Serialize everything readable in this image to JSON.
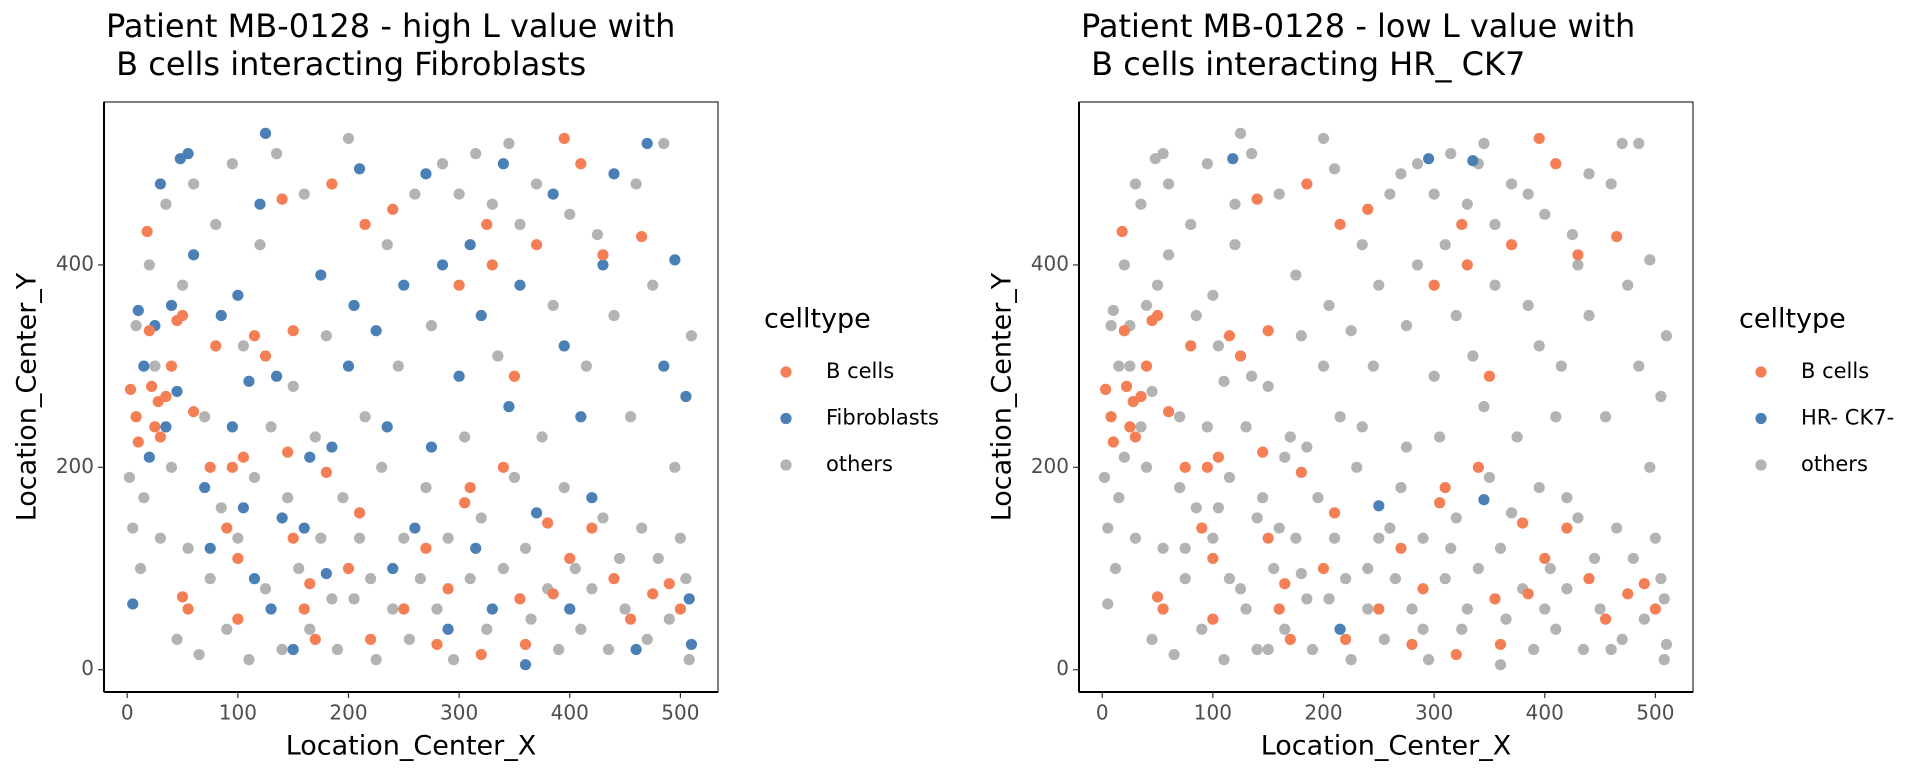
{
  "chart_data": [
    {
      "type": "scatter",
      "title": [
        "Patient MB-0128 - high L value with",
        " B cells interacting Fibroblasts"
      ],
      "x_label": "Location_Center_X",
      "y_label": "Location_Center_Y",
      "legend_title": "celltype",
      "xlim": [
        -21,
        534
      ],
      "ylim": [
        -22,
        561
      ],
      "xticks": [
        0,
        100,
        200,
        300,
        400,
        500
      ],
      "yticks": [
        0,
        200,
        400
      ],
      "series": [
        {
          "name": "B cells",
          "color": "#f47f55",
          "x": [
            3,
            8,
            10,
            18,
            20,
            22,
            25,
            28,
            30,
            35,
            40,
            45,
            50,
            50,
            55,
            60,
            75,
            80,
            90,
            95,
            100,
            100,
            105,
            115,
            125,
            140,
            145,
            150,
            150,
            160,
            165,
            170,
            180,
            185,
            200,
            210,
            215,
            220,
            240,
            250,
            270,
            280,
            290,
            300,
            305,
            310,
            320,
            325,
            330,
            340,
            350,
            355,
            360,
            370,
            380,
            385,
            395,
            400,
            410,
            420,
            430,
            440,
            455,
            465,
            475,
            490,
            500
          ],
          "y": [
            277,
            250,
            225,
            433,
            335,
            280,
            240,
            265,
            230,
            270,
            300,
            345,
            350,
            72,
            60,
            255,
            200,
            320,
            140,
            200,
            50,
            110,
            210,
            330,
            310,
            465,
            215,
            335,
            130,
            60,
            85,
            30,
            195,
            480,
            100,
            155,
            440,
            30,
            455,
            60,
            120,
            25,
            80,
            380,
            165,
            180,
            15,
            440,
            400,
            200,
            290,
            70,
            25,
            420,
            145,
            75,
            525,
            110,
            500,
            140,
            410,
            90,
            50,
            428,
            75,
            85,
            60
          ]
        },
        {
          "name": "Fibroblasts",
          "color": "#4a80b5",
          "x": [
            5,
            10,
            15,
            20,
            25,
            30,
            35,
            40,
            45,
            48,
            55,
            60,
            70,
            75,
            85,
            95,
            100,
            105,
            110,
            115,
            120,
            125,
            130,
            135,
            140,
            150,
            160,
            165,
            175,
            180,
            185,
            200,
            205,
            210,
            225,
            235,
            240,
            250,
            260,
            270,
            275,
            285,
            290,
            300,
            310,
            315,
            320,
            330,
            340,
            345,
            355,
            360,
            370,
            385,
            395,
            400,
            410,
            420,
            430,
            440,
            460,
            470,
            485,
            495,
            505,
            510,
            508
          ],
          "y": [
            65,
            355,
            300,
            210,
            340,
            480,
            240,
            360,
            275,
            505,
            510,
            410,
            180,
            120,
            350,
            240,
            370,
            160,
            285,
            90,
            460,
            530,
            60,
            290,
            150,
            20,
            140,
            210,
            390,
            95,
            220,
            300,
            360,
            495,
            335,
            240,
            100,
            380,
            140,
            490,
            220,
            400,
            40,
            290,
            420,
            120,
            350,
            60,
            500,
            260,
            380,
            5,
            155,
            470,
            320,
            60,
            250,
            170,
            400,
            490,
            20,
            520,
            300,
            405,
            270,
            25,
            70
          ]
        },
        {
          "name": "others",
          "color": "#b3b3b3",
          "x": [
            2,
            5,
            8,
            12,
            15,
            20,
            25,
            30,
            35,
            40,
            45,
            50,
            55,
            60,
            65,
            70,
            75,
            80,
            85,
            90,
            95,
            100,
            105,
            110,
            115,
            120,
            125,
            130,
            135,
            140,
            145,
            150,
            155,
            160,
            165,
            170,
            175,
            180,
            185,
            190,
            195,
            200,
            205,
            210,
            215,
            220,
            225,
            230,
            235,
            240,
            245,
            250,
            255,
            260,
            265,
            270,
            275,
            280,
            285,
            290,
            295,
            300,
            305,
            310,
            315,
            320,
            325,
            330,
            335,
            340,
            345,
            350,
            355,
            360,
            365,
            370,
            375,
            380,
            385,
            390,
            395,
            400,
            405,
            410,
            415,
            420,
            425,
            430,
            435,
            440,
            445,
            450,
            455,
            460,
            465,
            470,
            475,
            480,
            485,
            490,
            495,
            500,
            505,
            510,
            508
          ],
          "y": [
            190,
            140,
            340,
            100,
            170,
            400,
            300,
            130,
            460,
            200,
            30,
            380,
            120,
            480,
            15,
            250,
            90,
            440,
            160,
            40,
            500,
            130,
            320,
            10,
            190,
            420,
            80,
            240,
            510,
            20,
            170,
            280,
            100,
            470,
            40,
            230,
            130,
            330,
            70,
            20,
            170,
            525,
            70,
            130,
            250,
            90,
            10,
            200,
            420,
            60,
            300,
            130,
            30,
            470,
            90,
            180,
            340,
            60,
            500,
            130,
            10,
            470,
            230,
            90,
            510,
            150,
            40,
            460,
            310,
            100,
            520,
            190,
            440,
            120,
            50,
            480,
            230,
            80,
            360,
            20,
            180,
            450,
            100,
            40,
            300,
            80,
            430,
            150,
            20,
            350,
            110,
            60,
            250,
            480,
            140,
            30,
            380,
            110,
            520,
            50,
            200,
            130,
            90,
            330,
            10
          ]
        }
      ]
    },
    {
      "type": "scatter",
      "title": [
        "Patient MB-0128 - low L value with",
        " B cells interacting HR_ CK7"
      ],
      "x_label": "Location_Center_X",
      "y_label": "Location_Center_Y",
      "legend_title": "celltype",
      "xlim": [
        -21,
        534
      ],
      "ylim": [
        -22,
        561
      ],
      "xticks": [
        0,
        100,
        200,
        300,
        400,
        500
      ],
      "yticks": [
        0,
        200,
        400
      ],
      "series": [
        {
          "name": "B cells",
          "color": "#f47f55",
          "x": [
            3,
            8,
            10,
            18,
            20,
            22,
            25,
            28,
            30,
            35,
            40,
            45,
            50,
            50,
            55,
            60,
            75,
            80,
            90,
            95,
            100,
            100,
            105,
            115,
            125,
            140,
            145,
            150,
            150,
            160,
            165,
            170,
            180,
            185,
            200,
            210,
            215,
            220,
            240,
            250,
            270,
            280,
            290,
            300,
            305,
            310,
            320,
            325,
            330,
            340,
            350,
            355,
            360,
            370,
            380,
            385,
            395,
            400,
            410,
            420,
            430,
            440,
            455,
            465,
            475,
            490,
            500
          ],
          "y": [
            277,
            250,
            225,
            433,
            335,
            280,
            240,
            265,
            230,
            270,
            300,
            345,
            350,
            72,
            60,
            255,
            200,
            320,
            140,
            200,
            50,
            110,
            210,
            330,
            310,
            465,
            215,
            335,
            130,
            60,
            85,
            30,
            195,
            480,
            100,
            155,
            440,
            30,
            455,
            60,
            120,
            25,
            80,
            380,
            165,
            180,
            15,
            440,
            400,
            200,
            290,
            70,
            25,
            420,
            145,
            75,
            525,
            110,
            500,
            140,
            410,
            90,
            50,
            428,
            75,
            85,
            60
          ]
        },
        {
          "name": "HR- CK7-",
          "color": "#4a80b5",
          "x": [
            118,
            295,
            335,
            250,
            345,
            215
          ],
          "y": [
            505,
            505,
            503,
            162,
            168,
            40
          ]
        },
        {
          "name": "others",
          "color": "#b3b3b3",
          "x": [
            2,
            5,
            8,
            12,
            15,
            20,
            25,
            30,
            35,
            40,
            45,
            50,
            55,
            60,
            65,
            70,
            75,
            80,
            85,
            90,
            95,
            100,
            105,
            110,
            115,
            120,
            125,
            130,
            135,
            140,
            145,
            150,
            155,
            160,
            165,
            170,
            175,
            180,
            185,
            190,
            195,
            200,
            205,
            210,
            215,
            220,
            225,
            230,
            235,
            240,
            245,
            250,
            255,
            260,
            265,
            270,
            275,
            280,
            285,
            290,
            295,
            300,
            305,
            310,
            315,
            320,
            325,
            330,
            335,
            340,
            345,
            350,
            355,
            360,
            365,
            370,
            375,
            380,
            385,
            390,
            395,
            400,
            405,
            410,
            415,
            420,
            425,
            430,
            435,
            440,
            445,
            450,
            455,
            460,
            465,
            470,
            475,
            480,
            485,
            490,
            495,
            500,
            505,
            510,
            508,
            5,
            10,
            15,
            20,
            25,
            30,
            35,
            40,
            45,
            48,
            55,
            60,
            70,
            75,
            85,
            95,
            100,
            105,
            110,
            115,
            120,
            125,
            130,
            135,
            140,
            150,
            160,
            165,
            175,
            180,
            185,
            200,
            205,
            210,
            225,
            235,
            240,
            250,
            260,
            270,
            275,
            285,
            290,
            300,
            310,
            315,
            320,
            330,
            340,
            345,
            355,
            360,
            370,
            385,
            395,
            400,
            410,
            420,
            430,
            440,
            460,
            470,
            485,
            495,
            505,
            510,
            508
          ],
          "y": [
            190,
            140,
            340,
            100,
            170,
            400,
            300,
            130,
            460,
            200,
            30,
            380,
            120,
            480,
            15,
            250,
            90,
            440,
            160,
            40,
            500,
            130,
            320,
            10,
            190,
            420,
            80,
            240,
            510,
            20,
            170,
            280,
            100,
            470,
            40,
            230,
            130,
            330,
            70,
            20,
            170,
            525,
            70,
            130,
            250,
            90,
            10,
            200,
            420,
            60,
            300,
            130,
            30,
            470,
            90,
            180,
            340,
            60,
            500,
            130,
            10,
            470,
            230,
            90,
            510,
            150,
            40,
            460,
            310,
            100,
            520,
            190,
            440,
            120,
            50,
            480,
            230,
            80,
            360,
            20,
            180,
            450,
            100,
            40,
            300,
            80,
            430,
            150,
            20,
            350,
            110,
            60,
            250,
            480,
            140,
            30,
            380,
            110,
            520,
            50,
            200,
            130,
            90,
            330,
            10,
            65,
            355,
            300,
            210,
            340,
            480,
            240,
            360,
            275,
            505,
            510,
            410,
            180,
            120,
            350,
            240,
            370,
            160,
            285,
            90,
            460,
            530,
            60,
            290,
            150,
            20,
            140,
            210,
            390,
            95,
            220,
            300,
            360,
            495,
            335,
            240,
            100,
            380,
            140,
            490,
            220,
            400,
            40,
            290,
            420,
            120,
            350,
            60,
            500,
            260,
            380,
            5,
            155,
            470,
            320,
            60,
            250,
            170,
            400,
            490,
            20,
            520,
            300,
            405,
            270,
            25,
            70
          ]
        }
      ]
    }
  ]
}
